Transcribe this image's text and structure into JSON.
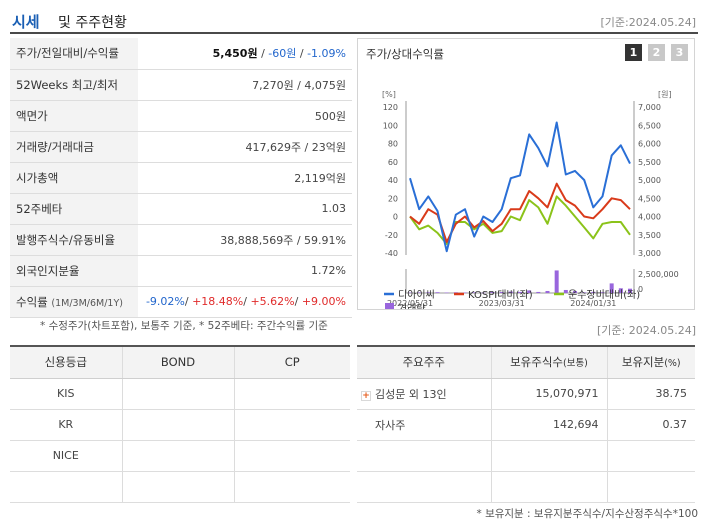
{
  "header": {
    "title": "시세",
    "subtitle": "및 주주현황",
    "date": "[기준:2024.05.24]"
  },
  "price_table": [
    {
      "label": "주가/전일대비/수익률",
      "price": "5,450원",
      "sep1": " / ",
      "change": "-60원",
      "sep2": " / ",
      "rate": "-1.09%"
    },
    {
      "label": "52Weeks 최고/최저",
      "value": "7,270원 / 4,075원"
    },
    {
      "label": "액면가",
      "value": "500원"
    },
    {
      "label": "거래량/거래대금",
      "value": "417,629주 / 23억원"
    },
    {
      "label": "시가총액",
      "value": "2,119억원"
    },
    {
      "label": "52주베타",
      "value": "1.03"
    },
    {
      "label": "발행주식수/유동비율",
      "value": "38,888,569주 / 59.91%"
    },
    {
      "label": "외국인지분율",
      "value": "1.72%"
    },
    {
      "label": "수익률",
      "label_sub": "(1M/3M/6M/1Y)",
      "r1": "-9.02%",
      "r2": "+18.48%",
      "r3": "+5.62%",
      "r4": "+9.00%",
      "sep": "/ "
    }
  ],
  "footnote": "* 수정주가(차트포함), 보통주 기준, * 52주베타: 주간수익률 기준",
  "date2": "[기준: 2024.05.24]",
  "chart_panel": {
    "title": "주가/상대수익률",
    "pages": [
      "1",
      "2",
      "3"
    ],
    "active_page": "1"
  },
  "chart_data": {
    "type": "line",
    "left_unit": "[%]",
    "right_unit": "[원]",
    "y_left_ticks": [
      "120",
      "100",
      "80",
      "60",
      "40",
      "20",
      "0",
      "-20",
      "-40"
    ],
    "y_left_range": [
      -40,
      120
    ],
    "y_right_ticks": [
      "7,000",
      "6,500",
      "6,000",
      "5,500",
      "5,000",
      "4,500",
      "4,000",
      "3,500",
      "3,000"
    ],
    "y_right_range": [
      3000,
      7000
    ],
    "volume_tick": "2,500,000",
    "volume_zero": "0",
    "volume_max": 5000000,
    "x_ticks": [
      {
        "label": "2022/05/31",
        "index": 0
      },
      {
        "label": "2023/03/31",
        "index": 10
      },
      {
        "label": "2024/01/31",
        "index": 20
      }
    ],
    "n_points": 25,
    "series": [
      {
        "name": "디아이씨",
        "color": "#2a6fd6",
        "axis": "left",
        "values": [
          42,
          8,
          22,
          6,
          -38,
          2,
          8,
          -22,
          0,
          -6,
          8,
          42,
          45,
          90,
          75,
          55,
          103,
          46,
          50,
          40,
          10,
          22,
          67,
          78,
          58
        ]
      },
      {
        "name": "KOSPI대비(좌)",
        "color": "#d93a1a",
        "axis": "left",
        "values": [
          0,
          -8,
          8,
          2,
          -28,
          -8,
          0,
          -12,
          -5,
          -16,
          -8,
          8,
          8,
          28,
          20,
          10,
          36,
          18,
          12,
          0,
          -2,
          8,
          20,
          18,
          8
        ]
      },
      {
        "name": "운수장비대비(좌)",
        "color": "#8bc31a",
        "axis": "left",
        "values": [
          0,
          -14,
          -10,
          -18,
          -30,
          -6,
          -6,
          -14,
          -8,
          -18,
          -16,
          0,
          -4,
          18,
          10,
          -8,
          22,
          12,
          0,
          -12,
          -24,
          -8,
          -6,
          -6,
          -20
        ]
      }
    ],
    "volume": {
      "name": "거래량",
      "color": "#9966dd",
      "values": [
        90000,
        130000,
        140000,
        160000,
        90000,
        150000,
        100000,
        140000,
        60000,
        200000,
        210000,
        300000,
        230000,
        540000,
        220000,
        420000,
        4700000,
        630000,
        400000,
        130000,
        230000,
        160000,
        2000000,
        980000,
        900000
      ]
    },
    "legend": [
      {
        "name": "디아이씨",
        "kind": "line",
        "color": "#2a6fd6"
      },
      {
        "name": "KOSPI대비(좌)",
        "kind": "line",
        "color": "#d93a1a"
      },
      {
        "name": "운수장비대비(좌)",
        "kind": "line",
        "color": "#8bc31a"
      },
      {
        "name": "거래량",
        "kind": "box",
        "color": "#9966dd"
      }
    ]
  },
  "credit_table": {
    "headers": [
      "신용등급",
      "BOND",
      "CP"
    ],
    "rows": [
      [
        "KIS",
        "",
        ""
      ],
      [
        "KR",
        "",
        ""
      ],
      [
        "NICE",
        "",
        ""
      ],
      [
        "",
        "",
        ""
      ]
    ]
  },
  "holders_table": {
    "headers": [
      "주요주주",
      "보유주식수",
      "(보통)",
      "보유지분",
      "(%)"
    ],
    "rows": [
      {
        "expand": "+",
        "name": "김성문 외 13인",
        "shares": "15,070,971",
        "pct": "38.75"
      },
      {
        "name": "자사주",
        "shares": "142,694",
        "pct": "0.37"
      },
      {
        "name": "",
        "shares": "",
        "pct": ""
      },
      {
        "name": "",
        "shares": "",
        "pct": ""
      }
    ]
  },
  "footnote2": "* 보유지분 : 보유지분주식수/지수산정주식수*100"
}
